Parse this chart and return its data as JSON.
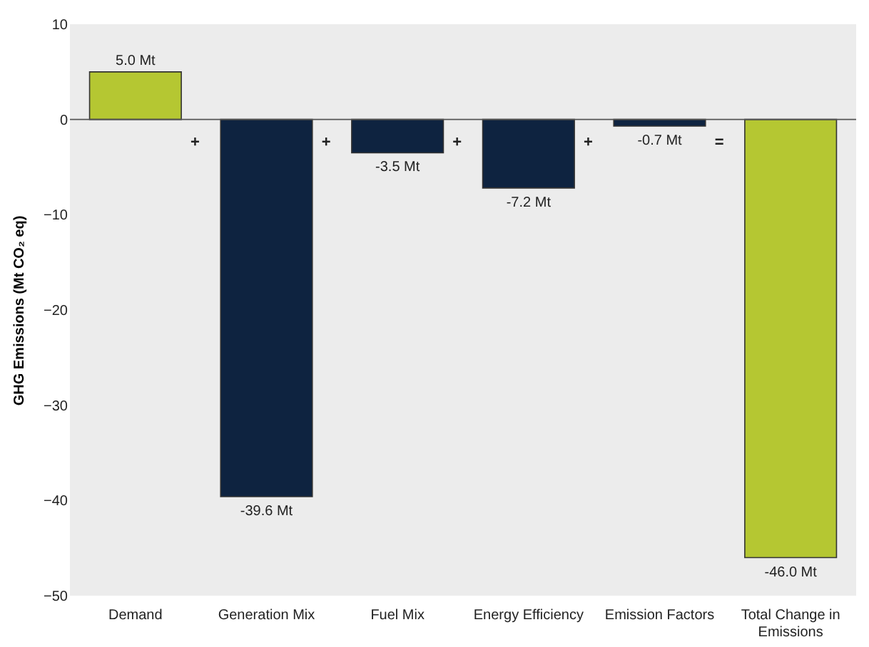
{
  "chart_data": {
    "type": "bar",
    "ylabel": "GHG Emissions  (Mt CO₂ eq)",
    "categories": [
      "Demand",
      "Generation Mix",
      "Fuel Mix",
      "Energy Efficiency",
      "Emission Factors",
      "Total Change in Emissions"
    ],
    "values": [
      5.0,
      -39.6,
      -3.5,
      -7.2,
      -0.7,
      -46.0
    ],
    "colors": [
      "#b5c732",
      "#0e2340",
      "#0e2340",
      "#0e2340",
      "#0e2340",
      "#b5c732"
    ],
    "value_labels": [
      "5.0 Mt",
      "-39.6 Mt",
      "-3.5 Mt",
      "-7.2 Mt",
      "-0.7 Mt",
      "-46.0 Mt"
    ],
    "annotations": [
      "+",
      "+",
      "+",
      "+",
      "="
    ],
    "ylim": [
      -50,
      10
    ],
    "yticks": [
      -50,
      -40,
      -30,
      -20,
      -10,
      0,
      10
    ],
    "ref_lines": [
      {
        "axis": "y",
        "value": 0,
        "color": "#555555"
      }
    ]
  }
}
